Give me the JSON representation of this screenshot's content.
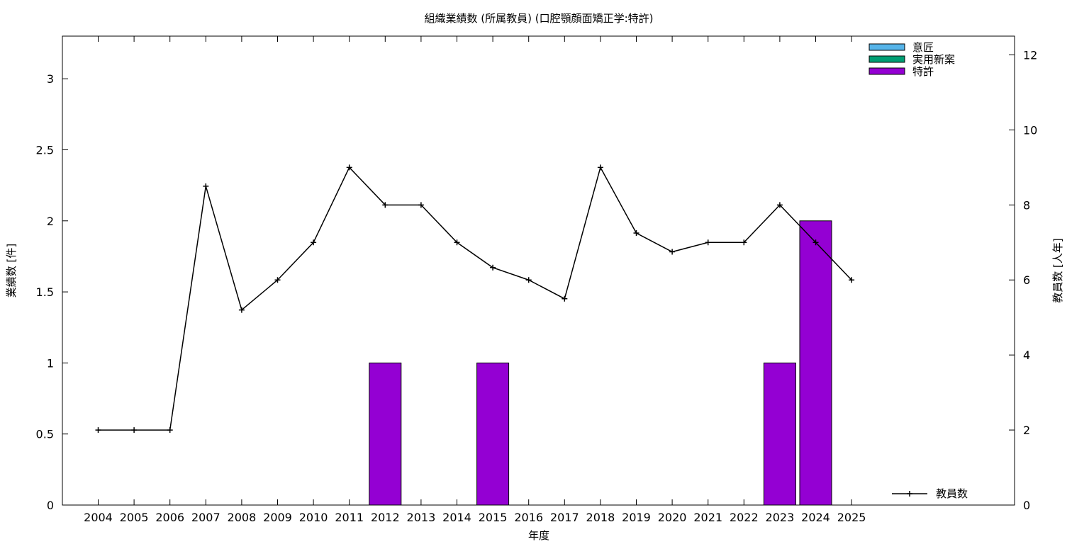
{
  "chart_data": {
    "type": "bar",
    "title": "組織業績数 (所属教員) (口腔顎顔面矯正学:特許)",
    "xlabel": "年度",
    "ylabel": "業績数 [件]",
    "y2label": "教員数 [人年]",
    "categories": [
      "2004",
      "2005",
      "2006",
      "2007",
      "2008",
      "2009",
      "2010",
      "2011",
      "2012",
      "2013",
      "2014",
      "2015",
      "2016",
      "2017",
      "2018",
      "2019",
      "2020",
      "2021",
      "2022",
      "2023",
      "2024",
      "2025"
    ],
    "ylim": [
      0,
      3.3
    ],
    "y2lim": [
      0,
      12.5
    ],
    "yticks": [
      "0",
      "0.5",
      "1",
      "1.5",
      "2",
      "2.5",
      "3"
    ],
    "y2ticks": [
      "0",
      "2",
      "4",
      "6",
      "8",
      "10",
      "12"
    ],
    "legend_position": "top-right",
    "series": [
      {
        "name": "意匠",
        "kind": "bar",
        "color": "#56B4E9",
        "values": [
          0,
          0,
          0,
          0,
          0,
          0,
          0,
          0,
          0,
          0,
          0,
          0,
          0,
          0,
          0,
          0,
          0,
          0,
          0,
          0,
          0,
          0
        ]
      },
      {
        "name": "実用新案",
        "kind": "bar",
        "color": "#009E73",
        "values": [
          0,
          0,
          0,
          0,
          0,
          0,
          0,
          0,
          0,
          0,
          0,
          0,
          0,
          0,
          0,
          0,
          0,
          0,
          0,
          0,
          0,
          0
        ]
      },
      {
        "name": "特許",
        "kind": "bar",
        "color": "#9400D3",
        "values": [
          0,
          0,
          0,
          0,
          0,
          0,
          0,
          0,
          1,
          0,
          0,
          1,
          0,
          0,
          0,
          0,
          0,
          0,
          0,
          1,
          2,
          0
        ]
      },
      {
        "name": "教員数",
        "kind": "line",
        "axis": "y2",
        "color": "#000000",
        "values": [
          2,
          2,
          2,
          8.5,
          5.2,
          6,
          7,
          9,
          8,
          8,
          7,
          6.33,
          6,
          5.5,
          9,
          7.25,
          6.75,
          7,
          7,
          8,
          7,
          6
        ]
      }
    ]
  }
}
